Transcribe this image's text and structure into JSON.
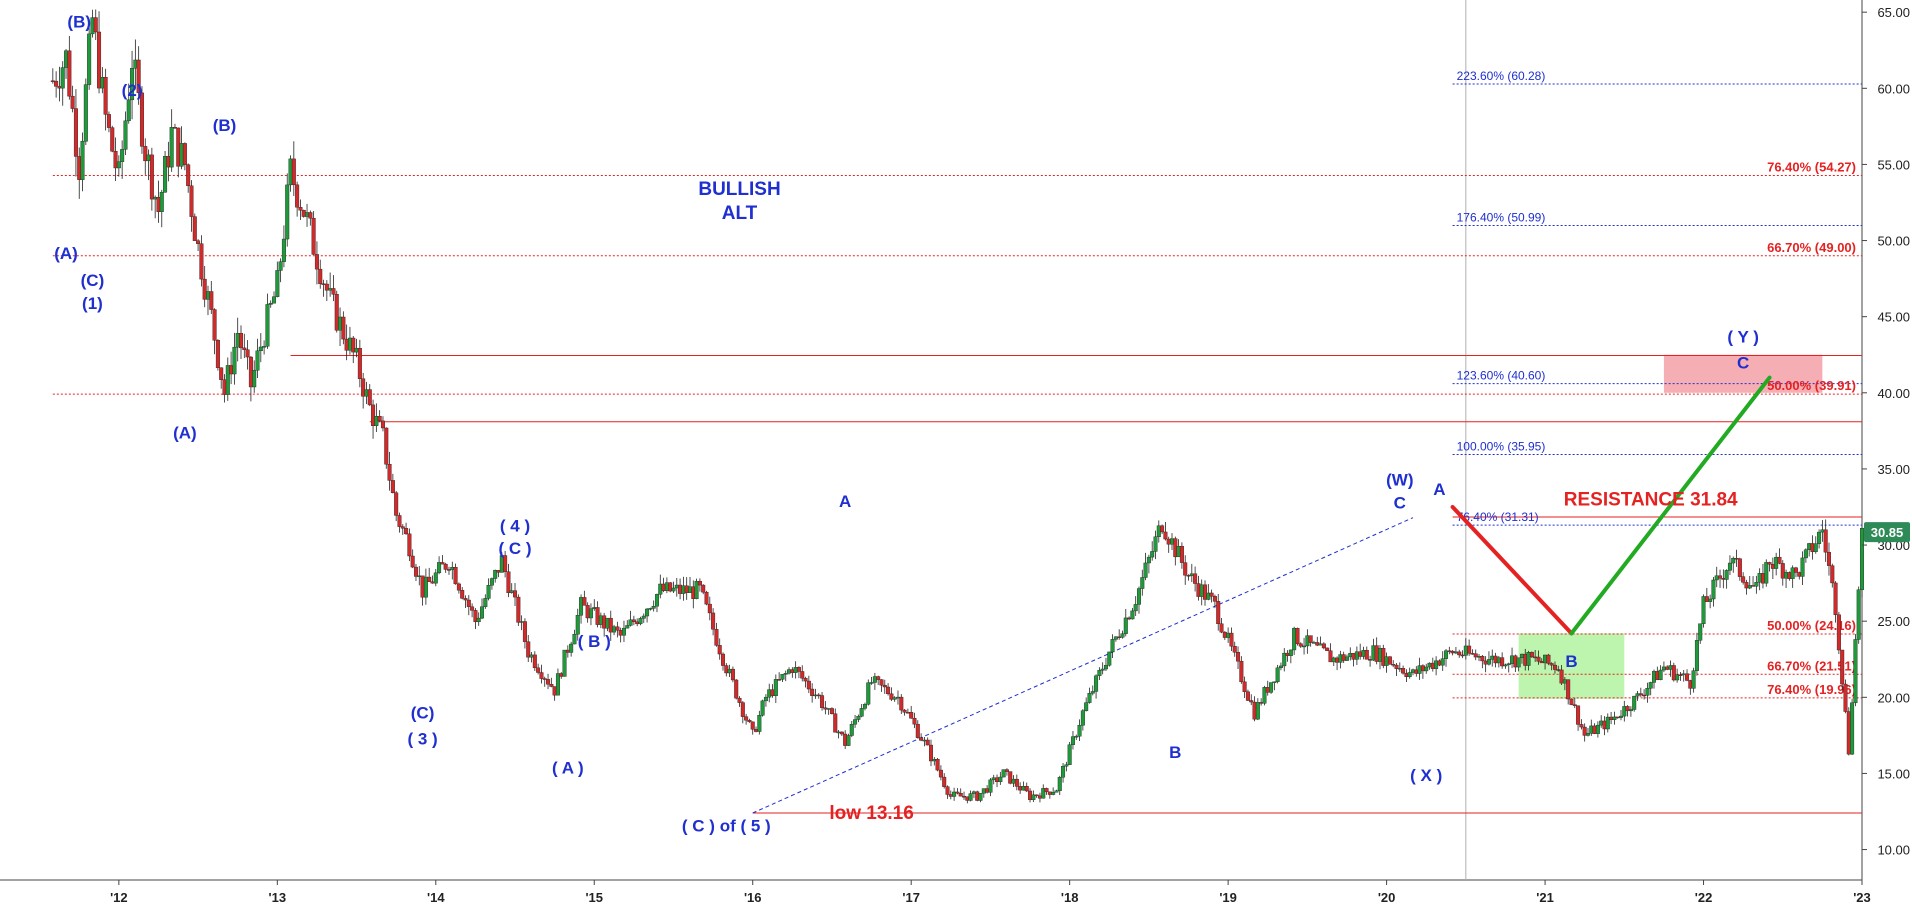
{
  "chart_data": {
    "type": "candlestick",
    "title": "",
    "xlabel": "",
    "ylabel": "",
    "grid": false,
    "x_range": [
      "2011-08",
      "2023-01"
    ],
    "ylim": [
      8.0,
      65.8
    ],
    "y_axis_side": "right",
    "y_ticks": [
      10,
      15,
      20,
      25,
      30,
      35,
      40,
      45,
      50,
      55,
      60,
      65
    ],
    "y_tick_labels": [
      "10.00",
      "15.00",
      "20.00",
      "25.00",
      "30.00",
      "35.00",
      "40.00",
      "45.00",
      "50.00",
      "55.00",
      "60.00",
      "65.00"
    ],
    "x_ticks": [
      "2012-01",
      "2013-01",
      "2014-01",
      "2015-01",
      "2016-01",
      "2017-01",
      "2018-01",
      "2019-01",
      "2020-01",
      "2021-01",
      "2022-01",
      "2023-01"
    ],
    "x_tick_labels": [
      "'12",
      "'13",
      "'14",
      "'15",
      "'16",
      "'17",
      "'18",
      "'19",
      "'20",
      "'21",
      "'22",
      "'23"
    ],
    "vertical_marker": "2020-07",
    "price_anchors": [
      [
        "2011-08",
        60.5
      ],
      [
        "2011-09",
        62
      ],
      [
        "2011-10",
        55
      ],
      [
        "2011-11",
        64.5
      ],
      [
        "2011-12",
        58
      ],
      [
        "2012-01",
        54
      ],
      [
        "2012-02",
        62
      ],
      [
        "2012-03",
        56
      ],
      [
        "2012-04",
        52
      ],
      [
        "2012-05",
        57
      ],
      [
        "2012-06",
        55
      ],
      [
        "2012-07",
        49.5
      ],
      [
        "2012-08",
        45
      ],
      [
        "2012-09",
        40
      ],
      [
        "2012-10",
        44
      ],
      [
        "2012-11",
        40.5
      ],
      [
        "2012-12",
        44
      ],
      [
        "2013-01",
        47
      ],
      [
        "2013-02",
        54.5
      ],
      [
        "2013-03",
        52
      ],
      [
        "2013-04",
        49
      ],
      [
        "2013-05",
        46
      ],
      [
        "2013-06",
        44
      ],
      [
        "2013-07",
        42
      ],
      [
        "2013-08",
        39
      ],
      [
        "2013-09",
        37
      ],
      [
        "2013-10",
        32
      ],
      [
        "2013-11",
        30
      ],
      [
        "2013-12",
        27
      ],
      [
        "2014-02",
        29
      ],
      [
        "2014-04",
        25
      ],
      [
        "2014-06",
        29
      ],
      [
        "2014-08",
        23
      ],
      [
        "2014-10",
        20.5
      ],
      [
        "2014-12",
        26
      ],
      [
        "2015-03",
        24
      ],
      [
        "2015-06",
        27
      ],
      [
        "2015-09",
        27
      ],
      [
        "2015-11",
        22
      ],
      [
        "2016-01",
        17.5
      ],
      [
        "2016-02",
        20
      ],
      [
        "2016-04",
        22
      ],
      [
        "2016-06",
        20
      ],
      [
        "2016-08",
        17
      ],
      [
        "2016-10",
        21
      ],
      [
        "2016-12",
        20
      ],
      [
        "2017-02",
        17
      ],
      [
        "2017-04",
        13.5
      ],
      [
        "2017-06",
        13.5
      ],
      [
        "2017-08",
        15
      ],
      [
        "2017-10",
        13.5
      ],
      [
        "2017-12",
        14
      ],
      [
        "2018-02",
        19
      ],
      [
        "2018-04",
        23
      ],
      [
        "2018-06",
        26.5
      ],
      [
        "2018-08",
        31.5
      ],
      [
        "2018-10",
        28
      ],
      [
        "2018-12",
        26
      ],
      [
        "2019-03",
        19
      ],
      [
        "2019-06",
        24
      ],
      [
        "2019-09",
        22.5
      ],
      [
        "2019-12",
        23
      ],
      [
        "2020-03",
        21.5
      ],
      [
        "2020-06",
        23
      ],
      [
        "2020-09",
        22.5
      ],
      [
        "2020-12",
        22.5
      ],
      [
        "2021-02",
        22
      ],
      [
        "2021-04",
        17.5
      ],
      [
        "2021-06",
        18.5
      ],
      [
        "2021-08",
        20
      ],
      [
        "2021-10",
        22
      ],
      [
        "2021-12",
        21
      ],
      [
        "2022-01",
        26
      ],
      [
        "2022-03",
        29
      ],
      [
        "2022-05",
        27
      ],
      [
        "2022-06",
        29
      ],
      [
        "2022-08",
        28
      ],
      [
        "2022-10",
        31
      ],
      [
        "2022-11",
        26
      ],
      [
        "2022-12",
        16.5
      ],
      [
        "2023-01",
        30.85
      ]
    ],
    "horizontal_levels": [
      {
        "label": "223.60% (60.28)",
        "value": 60.28,
        "color": "#1f2fd0",
        "style": "dotted",
        "from": "2020-06",
        "label_side": "left"
      },
      {
        "label": "76.40% (54.27)",
        "value": 54.27,
        "color": "#e52222",
        "style": "dotted",
        "from": "2011-08",
        "label_side": "right"
      },
      {
        "label": "176.40% (50.99)",
        "value": 50.99,
        "color": "#1f2fd0",
        "style": "dotted",
        "from": "2020-06",
        "label_side": "left"
      },
      {
        "label": "66.70% (49.00)",
        "value": 49.0,
        "color": "#e52222",
        "style": "dotted",
        "from": "2011-08",
        "label_side": "right"
      },
      {
        "label": "",
        "value": 42.45,
        "color": "#e52222",
        "style": "solid",
        "from": "2013-02"
      },
      {
        "label": "123.60% (40.60)",
        "value": 40.6,
        "color": "#1f2fd0",
        "style": "dotted",
        "from": "2020-06",
        "label_side": "left"
      },
      {
        "label": "50.00% (39.91)",
        "value": 39.91,
        "color": "#e52222",
        "style": "dotted",
        "from": "2011-08",
        "label_side": "right"
      },
      {
        "label": "",
        "value": 38.1,
        "color": "#e52222",
        "style": "solid",
        "from": "2013-08"
      },
      {
        "label": "100.00% (35.95)",
        "value": 35.95,
        "color": "#1f2fd0",
        "style": "dotted",
        "from": "2020-06",
        "label_side": "left"
      },
      {
        "label": "",
        "value": 31.84,
        "color": "#e52222",
        "style": "solid",
        "from": "2020-06"
      },
      {
        "label": "76.40% (31.31)",
        "value": 31.31,
        "color": "#1f2fd0",
        "style": "dotted",
        "from": "2020-06",
        "label_side": "left"
      },
      {
        "label": "50.00% (24.16)",
        "value": 24.16,
        "color": "#e52222",
        "style": "dotted",
        "from": "2020-06",
        "label_side": "right"
      },
      {
        "label": "66.70% (21.51)",
        "value": 21.51,
        "color": "#e52222",
        "style": "dotted",
        "from": "2020-06",
        "label_side": "right"
      },
      {
        "label": "76.40% (19.96)",
        "value": 19.96,
        "color": "#e52222",
        "style": "dotted",
        "from": "2020-06",
        "label_side": "right"
      },
      {
        "label": "",
        "value": 12.4,
        "color": "#e52222",
        "style": "solid",
        "from": "2016-01"
      }
    ],
    "trendlines": [
      {
        "color": "#1f2fd0",
        "style": "dashed",
        "from": [
          "2016-01",
          12.4
        ],
        "to": [
          "2020-03",
          31.8
        ]
      }
    ],
    "projection_lines": [
      {
        "color": "#e52222",
        "from": [
          "2020-06",
          32.5
        ],
        "to": [
          "2021-03",
          24.2
        ]
      },
      {
        "color": "#22aa22",
        "from": [
          "2021-03",
          24.2
        ],
        "to": [
          "2022-06",
          41.0
        ]
      }
    ],
    "zones": [
      {
        "color": "#f4a0a8",
        "from": [
          "2021-10",
          40.0
        ],
        "to": [
          "2022-10",
          42.5
        ]
      },
      {
        "color": "#b2f2a0",
        "from": [
          "2020-11",
          19.9
        ],
        "to": [
          "2021-07",
          24.2
        ]
      }
    ],
    "annotations": [
      {
        "text": "(B)",
        "at": [
          "2011-10",
          64.0
        ],
        "color": "#1f2fd0"
      },
      {
        "text": "(2)",
        "at": [
          "2012-02",
          59.5
        ],
        "color": "#1f2fd0"
      },
      {
        "text": "(B)",
        "at": [
          "2012-09",
          57.2
        ],
        "color": "#1f2fd0"
      },
      {
        "text": "(A)",
        "at": [
          "2011-09",
          48.8
        ],
        "color": "#1f2fd0"
      },
      {
        "text": "(C)",
        "at": [
          "2011-11",
          47.0
        ],
        "color": "#1f2fd0"
      },
      {
        "text": "(1)",
        "at": [
          "2011-11",
          45.5
        ],
        "color": "#1f2fd0"
      },
      {
        "text": "(A)",
        "at": [
          "2012-06",
          37.0
        ],
        "color": "#1f2fd0"
      },
      {
        "text": "BULLISH",
        "at": [
          "2015-12",
          53.0
        ],
        "color": "#1f2fd0"
      },
      {
        "text": "ALT",
        "at": [
          "2015-12",
          51.4
        ],
        "color": "#1f2fd0"
      },
      {
        "text": "( 4 )",
        "at": [
          "2014-07",
          30.9
        ],
        "color": "#1f2fd0"
      },
      {
        "text": "( C )",
        "at": [
          "2014-07",
          29.4
        ],
        "color": "#1f2fd0"
      },
      {
        "text": "(C)",
        "at": [
          "2013-12",
          18.6
        ],
        "color": "#1f2fd0"
      },
      {
        "text": "( 3 )",
        "at": [
          "2013-12",
          16.9
        ],
        "color": "#1f2fd0"
      },
      {
        "text": "( B )",
        "at": [
          "2015-01",
          23.3
        ],
        "color": "#1f2fd0"
      },
      {
        "text": "( A )",
        "at": [
          "2014-11",
          15.0
        ],
        "color": "#1f2fd0"
      },
      {
        "text": "( C )  of ( 5 )",
        "at": [
          "2015-11",
          11.2
        ],
        "color": "#1f2fd0"
      },
      {
        "text": "low 13.16",
        "at": [
          "2016-10",
          12.0
        ],
        "color": "#e52222"
      },
      {
        "text": "A",
        "at": [
          "2016-08",
          32.5
        ],
        "color": "#1f2fd0"
      },
      {
        "text": "B",
        "at": [
          "2018-09",
          16.0
        ],
        "color": "#1f2fd0"
      },
      {
        "text": "(W)",
        "at": [
          "2020-02",
          33.9
        ],
        "color": "#1f2fd0"
      },
      {
        "text": "C",
        "at": [
          "2020-02",
          32.4
        ],
        "color": "#1f2fd0"
      },
      {
        "text": "A",
        "at": [
          "2020-05",
          33.3
        ],
        "color": "#1f2fd0"
      },
      {
        "text": "( X )",
        "at": [
          "2020-04",
          14.5
        ],
        "color": "#1f2fd0"
      },
      {
        "text": "RESISTANCE 31.84",
        "at": [
          "2021-09",
          32.6
        ],
        "color": "#e52222"
      },
      {
        "text": "B",
        "at": [
          "2021-03",
          22.0
        ],
        "color": "#1f2fd0"
      },
      {
        "text": "( Y )",
        "at": [
          "2022-04",
          43.3
        ],
        "color": "#1f2fd0"
      },
      {
        "text": "C",
        "at": [
          "2022-04",
          41.6
        ],
        "color": "#1f2fd0"
      }
    ],
    "last_price": {
      "value": 30.85,
      "label": "30.85",
      "color": "#2e8b57"
    }
  }
}
